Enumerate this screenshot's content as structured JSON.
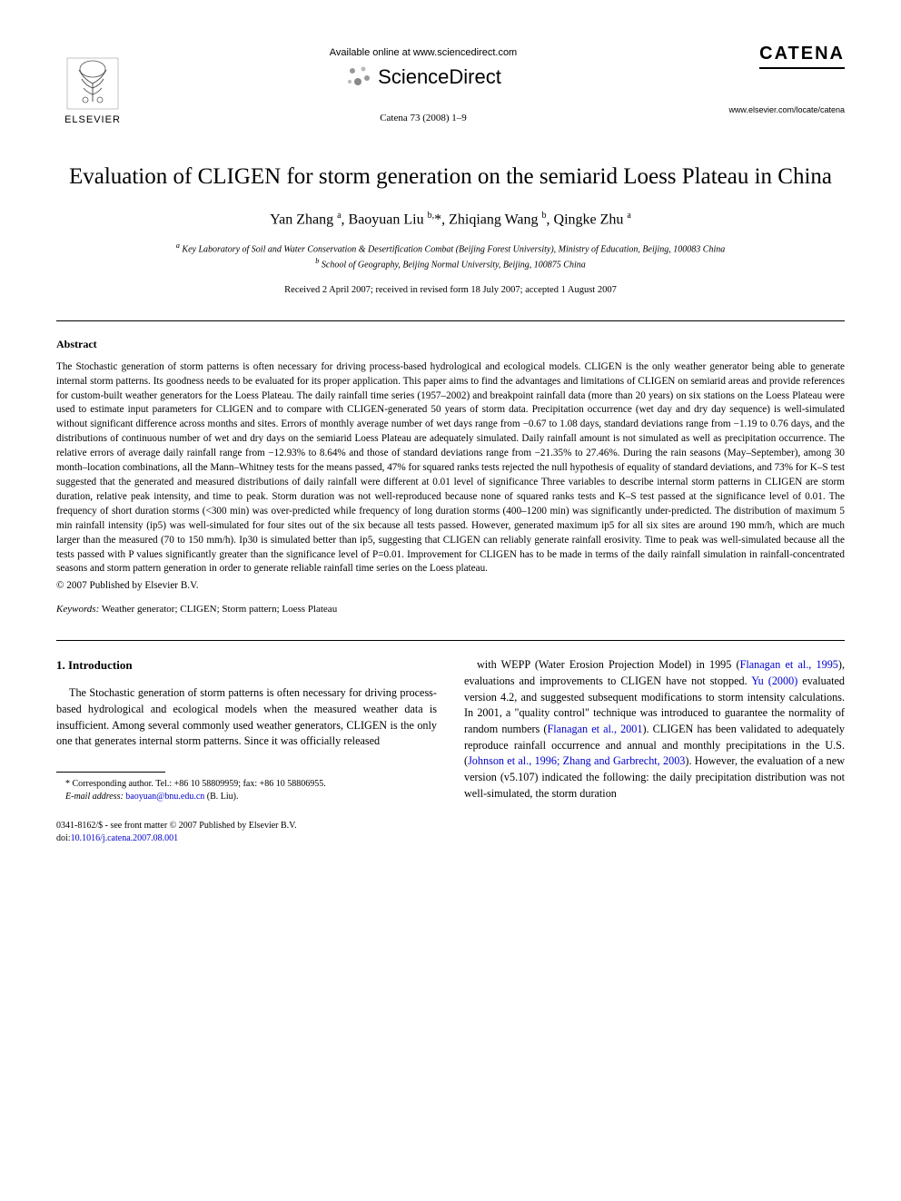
{
  "header": {
    "elsevier_label": "ELSEVIER",
    "available_online": "Available online at www.sciencedirect.com",
    "sciencedirect": "ScienceDirect",
    "journal_ref": "Catena 73 (2008) 1–9",
    "catena": "CATENA",
    "journal_url": "www.elsevier.com/locate/catena"
  },
  "title": "Evaluation of CLIGEN for storm generation on the semiarid Loess Plateau in China",
  "authors_html": "Yan Zhang <sup>a</sup>, Baoyuan Liu <sup>b,</sup>*, Zhiqiang Wang <sup>b</sup>, Qingke Zhu <sup>a</sup>",
  "affiliations": {
    "a": "Key Laboratory of Soil and Water Conservation & Desertification Combat (Beijing Forest University), Ministry of Education, Beijing, 100083 China",
    "b": "School of Geography, Beijing Normal University, Beijing, 100875 China"
  },
  "dates": "Received 2 April 2007; received in revised form 18 July 2007; accepted 1 August 2007",
  "abstract": {
    "heading": "Abstract",
    "body": "The Stochastic generation of storm patterns is often necessary for driving process-based hydrological and ecological models. CLIGEN is the only weather generator being able to generate internal storm patterns. Its goodness needs to be evaluated for its proper application. This paper aims to find the advantages and limitations of CLIGEN on semiarid areas and provide references for custom-built weather generators for the Loess Plateau. The daily rainfall time series (1957–2002) and breakpoint rainfall data (more than 20 years) on six stations on the Loess Plateau were used to estimate input parameters for CLIGEN and to compare with CLIGEN-generated 50 years of storm data. Precipitation occurrence (wet day and dry day sequence) is well-simulated without significant difference across months and sites. Errors of monthly average number of wet days range from −0.67 to 1.08 days, standard deviations range from −1.19 to 0.76 days, and the distributions of continuous number of wet and dry days on the semiarid Loess Plateau are adequately simulated. Daily rainfall amount is not simulated as well as precipitation occurrence. The relative errors of average daily rainfall range from −12.93% to 8.64% and those of standard deviations range from −21.35% to 27.46%. During the rain seasons (May–September), among 30 month–location combinations, all the Mann–Whitney tests for the means passed, 47% for squared ranks tests rejected the null hypothesis of equality of standard deviations, and 73% for K–S test suggested that the generated and measured distributions of daily rainfall were different at 0.01 level of significance Three variables to describe internal storm patterns in CLIGEN are storm duration, relative peak intensity, and time to peak. Storm duration was not well-reproduced because none of squared ranks tests and K–S test passed at the significance level of 0.01. The frequency of short duration storms (<300 min) was over-predicted while frequency of long duration storms (400–1200 min) was significantly under-predicted. The distribution of maximum 5 min rainfall intensity (ip5) was well-simulated for four sites out of the six because all tests passed. However, generated maximum ip5 for all six sites are around 190 mm/h, which are much larger than the measured (70 to 150 mm/h). Ip30 is simulated better than ip5, suggesting that CLIGEN can reliably generate rainfall erosivity. Time to peak was well-simulated because all the tests passed with P values significantly greater than the significance level of P=0.01. Improvement for CLIGEN has to be made in terms of the daily rainfall simulation in rainfall-concentrated seasons and storm pattern generation in order to generate reliable rainfall time series on the Loess plateau.",
    "copyright": "© 2007 Published by Elsevier B.V."
  },
  "keywords": {
    "label": "Keywords:",
    "text": "Weather generator; CLIGEN; Storm pattern; Loess Plateau"
  },
  "intro": {
    "heading": "1. Introduction",
    "left": "The Stochastic generation of storm patterns is often necessary for driving process-based hydrological and ecological models when the measured weather data is insufficient. Among several commonly used weather generators, CLIGEN is the only one that generates internal storm patterns. Since it was officially released",
    "right_pre": "with WEPP (Water Erosion Projection Model) in 1995 (",
    "right_ref1": "Flanagan et al., 1995",
    "right_mid1": "), evaluations and improvements to CLIGEN have not stopped. ",
    "right_ref2": "Yu (2000)",
    "right_mid2": " evaluated version 4.2, and suggested subsequent modifications to storm intensity calculations. In 2001, a \"quality control\" technique was introduced to guarantee the normality of random numbers (",
    "right_ref3": "Flanagan et al., 2001",
    "right_mid3": "). CLIGEN has been validated to adequately reproduce rainfall occurrence and annual and monthly precipitations in the U.S. (",
    "right_ref4": "Johnson et al., 1996; Zhang and Garbrecht, 2003",
    "right_mid4": "). However, the evaluation of a new version (v5.107) indicated the following: the daily precipitation distribution was not well-simulated, the storm duration"
  },
  "footnote": {
    "corresponding": "* Corresponding author. Tel.: +86 10 58809959; fax: +86 10 58806955.",
    "email_label": "E-mail address:",
    "email": "baoyuan@bnu.edu.cn",
    "email_suffix": "(B. Liu)."
  },
  "footer": {
    "issn": "0341-8162/$ - see front matter © 2007 Published by Elsevier B.V.",
    "doi_label": "doi:",
    "doi": "10.1016/j.catena.2007.08.001"
  },
  "colors": {
    "text": "#000000",
    "link": "#0000cc",
    "background": "#ffffff"
  },
  "typography": {
    "title_fontsize_pt": 19,
    "authors_fontsize_pt": 12,
    "body_fontsize_pt": 9,
    "abstract_fontsize_pt": 8.5,
    "font_family": "Times/Georgia serif"
  }
}
